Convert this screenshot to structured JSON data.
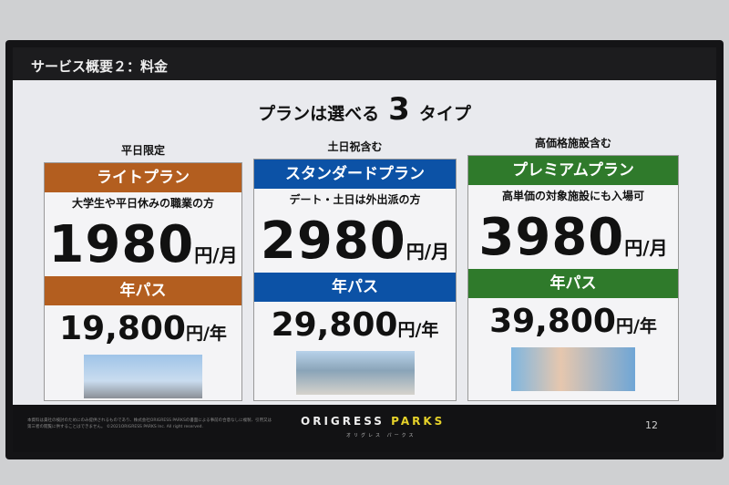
{
  "header": {
    "title": "サービス概要２：料金"
  },
  "headline": {
    "before": "プランは選べる",
    "number": "3",
    "after": "タイプ"
  },
  "colors": {
    "light": "#b35e1f",
    "standard": "#0c52a6",
    "premium": "#2f7a2b"
  },
  "plans": [
    {
      "caption": "平日限定",
      "name": "ライトプラン",
      "description": "大学生や平日休みの職業の方",
      "monthly_price": "1980",
      "monthly_unit": "円/月",
      "annual_label": "年パス",
      "annual_price": "19,800",
      "annual_unit": "円/年"
    },
    {
      "caption": "土日祝含む",
      "name": "スタンダードプラン",
      "description": "デート・土日は外出派の方",
      "monthly_price": "2980",
      "monthly_unit": "円/月",
      "annual_label": "年パス",
      "annual_price": "29,800",
      "annual_unit": "円/年"
    },
    {
      "caption": "高価格施設含む",
      "name": "プレミアムプラン",
      "description": "高単価の対象施設にも入場可",
      "monthly_price": "3980",
      "monthly_unit": "円/月",
      "annual_label": "年パス",
      "annual_price": "39,800",
      "annual_unit": "円/年"
    }
  ],
  "footer": {
    "note": "本資料は貴社の検討のためにのみ提供されるものであり、株式会社ORIGRESS PARKSの書面による事前の合意なしに複製、引用又は第三者の閲覧に供することはできません。 ©2021ORIGRESS PARKS Inc. All right reserved.",
    "logo_a": "ORIGRESS",
    "logo_b": "PARKS",
    "logo_kana": "オリグレス パークス",
    "page": "12"
  }
}
